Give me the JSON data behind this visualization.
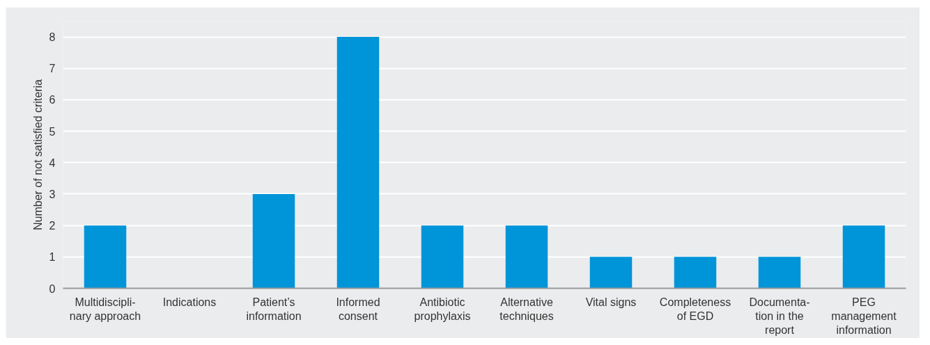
{
  "chart_data": {
    "type": "bar",
    "ylabel": "Number of not satisfied criteria",
    "categories": [
      "Multidiscipli-\nnary approach",
      "Indications",
      "Patient’s\ninformation",
      "Informed\nconsent",
      "Antibiotic\nprophylaxis",
      "Alternative\ntechniques",
      "Vital signs",
      "Completeness\nof EGD",
      "Documenta-\ntion in the\nreport",
      "PEG\nmanagement\ninformation"
    ],
    "values": [
      2,
      0,
      3,
      8,
      2,
      2,
      1,
      1,
      1,
      2
    ],
    "color": "#0094d9",
    "ylim": [
      0,
      8.5
    ],
    "yticks": [
      0,
      1,
      2,
      3,
      4,
      5,
      6,
      7,
      8
    ],
    "grid": "y"
  }
}
